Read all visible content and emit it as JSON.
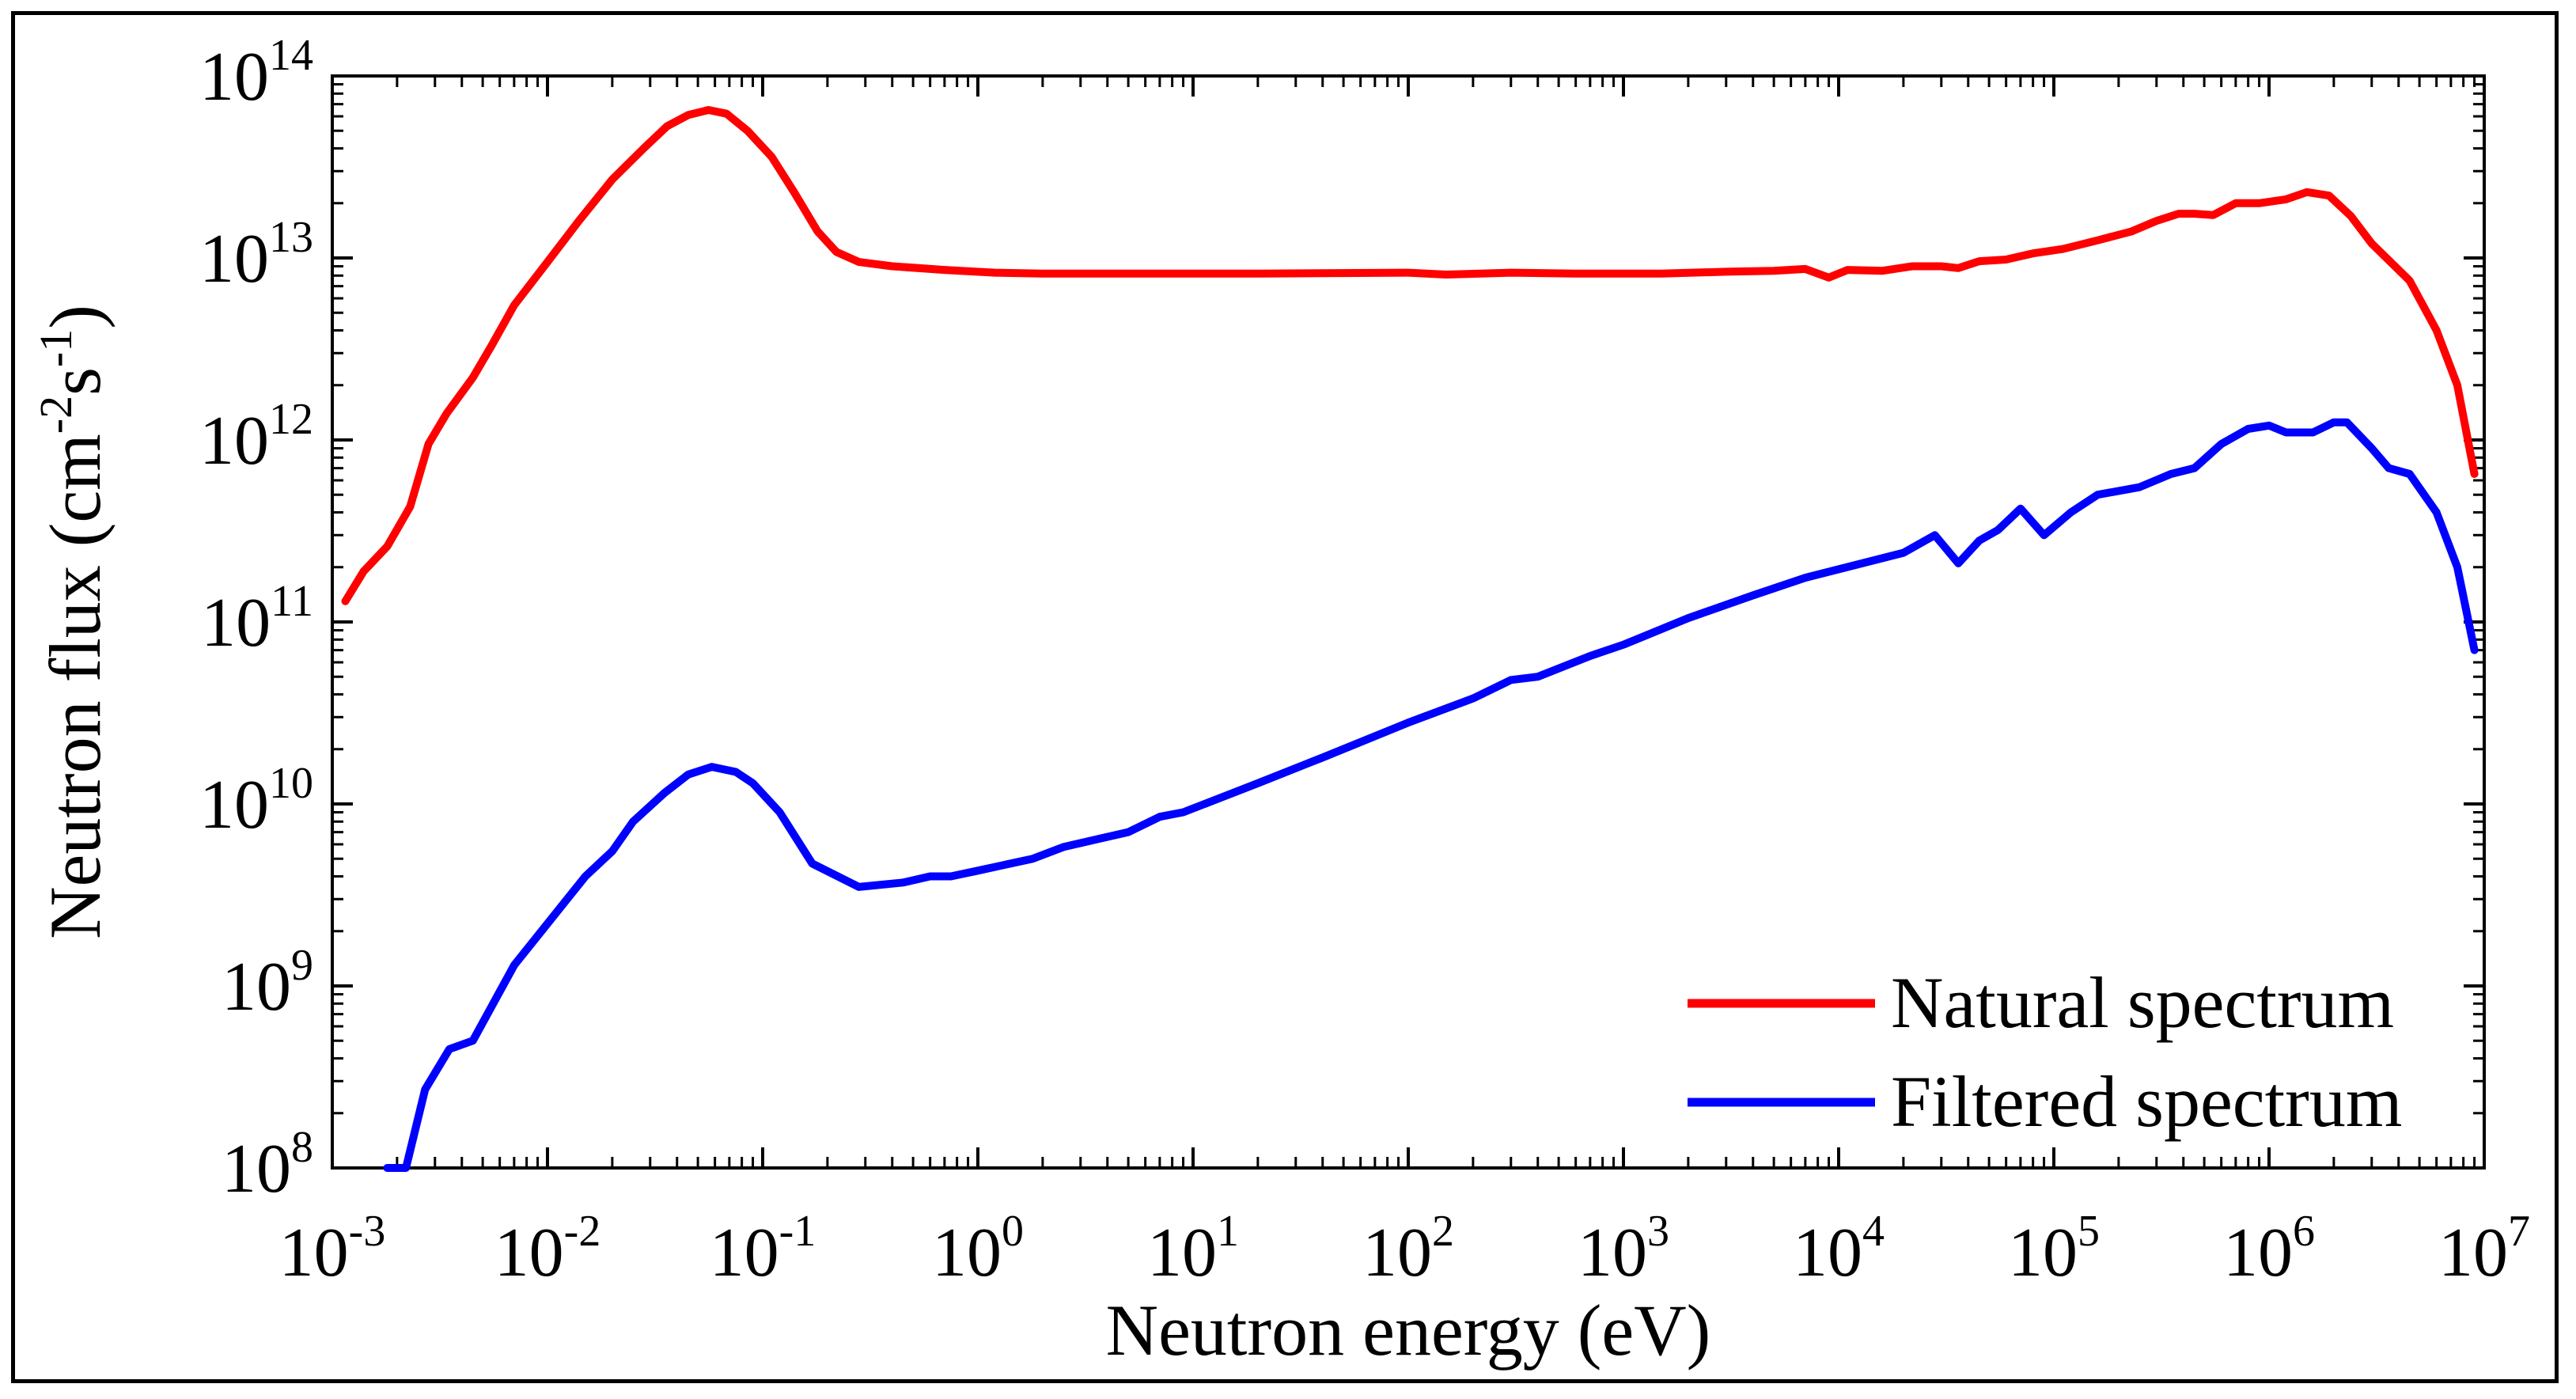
{
  "chart_data": {
    "type": "line",
    "title": "",
    "xlabel": "Neutron energy (eV)",
    "ylabel": {
      "base": "Neutron flux (cm",
      "sup1": "-2",
      "mid": "s",
      "sup2": "-1",
      "end": ")"
    },
    "xscale": "log",
    "yscale": "log",
    "xlim": [
      0.001,
      10000000
    ],
    "ylim": [
      100000000,
      100000000000000
    ],
    "x_ticks": [
      {
        "value": 0.001,
        "base": "10",
        "exp": "-3"
      },
      {
        "value": 0.01,
        "base": "10",
        "exp": "-2"
      },
      {
        "value": 0.1,
        "base": "10",
        "exp": "-1"
      },
      {
        "value": 1,
        "base": "10",
        "exp": "0"
      },
      {
        "value": 10,
        "base": "10",
        "exp": "1"
      },
      {
        "value": 100,
        "base": "10",
        "exp": "2"
      },
      {
        "value": 1000,
        "base": "10",
        "exp": "3"
      },
      {
        "value": 10000,
        "base": "10",
        "exp": "4"
      },
      {
        "value": 100000,
        "base": "10",
        "exp": "5"
      },
      {
        "value": 1000000,
        "base": "10",
        "exp": "6"
      },
      {
        "value": 10000000,
        "base": "10",
        "exp": "7"
      }
    ],
    "y_ticks": [
      {
        "value": 100000000,
        "base": "10",
        "exp": "8"
      },
      {
        "value": 1000000000,
        "base": "10",
        "exp": "9"
      },
      {
        "value": 10000000000,
        "base": "10",
        "exp": "10"
      },
      {
        "value": 100000000000,
        "base": "10",
        "exp": "11"
      },
      {
        "value": 1000000000000,
        "base": "10",
        "exp": "12"
      },
      {
        "value": 10000000000000,
        "base": "10",
        "exp": "13"
      },
      {
        "value": 100000000000000,
        "base": "10",
        "exp": "14"
      }
    ],
    "legend_position": "bottom-right",
    "series": [
      {
        "name": "Natural spectrum",
        "color": "#ff0000",
        "points": [
          [
            0.00115,
            130000000000.0
          ],
          [
            0.0014,
            190000000000.0
          ],
          [
            0.0018,
            260000000000.0
          ],
          [
            0.0023,
            430000000000.0
          ],
          [
            0.0028,
            950000000000.0
          ],
          [
            0.0034,
            1400000000000.0
          ],
          [
            0.0045,
            2200000000000.0
          ],
          [
            0.0055,
            3300000000000.0
          ],
          [
            0.007,
            5500000000000.0
          ],
          [
            0.01,
            9500000000000.0
          ],
          [
            0.014,
            16000000000000.0
          ],
          [
            0.02,
            27000000000000.0
          ],
          [
            0.028,
            40000000000000.0
          ],
          [
            0.036,
            53000000000000.0
          ],
          [
            0.045,
            61000000000000.0
          ],
          [
            0.056,
            65000000000000.0
          ],
          [
            0.068,
            62000000000000.0
          ],
          [
            0.085,
            50000000000000.0
          ],
          [
            0.11,
            36000000000000.0
          ],
          [
            0.14,
            23000000000000.0
          ],
          [
            0.18,
            14000000000000.0
          ],
          [
            0.22,
            10800000000000.0
          ],
          [
            0.28,
            9500000000000.0
          ],
          [
            0.4,
            9000000000000.0
          ],
          [
            0.7,
            8600000000000.0
          ],
          [
            1.2,
            8300000000000.0
          ],
          [
            2,
            8200000000000.0
          ],
          [
            5,
            8200000000000.0
          ],
          [
            20,
            8200000000000.0
          ],
          [
            100,
            8300000000000.0
          ],
          [
            150,
            8100000000000.0
          ],
          [
            300,
            8300000000000.0
          ],
          [
            600,
            8200000000000.0
          ],
          [
            1500,
            8200000000000.0
          ],
          [
            3000,
            8400000000000.0
          ],
          [
            5000,
            8500000000000.0
          ],
          [
            7000,
            8700000000000.0
          ],
          [
            9000,
            7800000000000.0
          ],
          [
            11000,
            8600000000000.0
          ],
          [
            16000,
            8500000000000.0
          ],
          [
            22000,
            9000000000000.0
          ],
          [
            30000,
            9000000000000.0
          ],
          [
            36000,
            8800000000000.0
          ],
          [
            45000,
            9600000000000.0
          ],
          [
            60000,
            9800000000000.0
          ],
          [
            80000,
            10600000000000.0
          ],
          [
            110000,
            11200000000000.0
          ],
          [
            160000,
            12500000000000.0
          ],
          [
            230000,
            14000000000000.0
          ],
          [
            300000,
            16000000000000.0
          ],
          [
            380000,
            17500000000000.0
          ],
          [
            450000,
            17500000000000.0
          ],
          [
            550000,
            17200000000000.0
          ],
          [
            700000,
            20000000000000.0
          ],
          [
            900000,
            20000000000000.0
          ],
          [
            1200000,
            21000000000000.0
          ],
          [
            1500000,
            23000000000000.0
          ],
          [
            1900000,
            22000000000000.0
          ],
          [
            2400000,
            17000000000000.0
          ],
          [
            3000000,
            12000000000000.0
          ],
          [
            4500000,
            7500000000000.0
          ],
          [
            6000000,
            4000000000000.0
          ],
          [
            7500000,
            2000000000000.0
          ],
          [
            9000000,
            650000000000.0
          ]
        ]
      },
      {
        "name": "Filtered spectrum",
        "color": "#0000ff",
        "points": [
          [
            0.0018,
            100000000.0
          ],
          [
            0.0022,
            100000000.0
          ],
          [
            0.0027,
            270000000.0
          ],
          [
            0.0035,
            450000000.0
          ],
          [
            0.0045,
            500000000.0
          ],
          [
            0.007,
            1300000000.0
          ],
          [
            0.01,
            2200000000.0
          ],
          [
            0.015,
            4000000000.0
          ],
          [
            0.02,
            5500000000.0
          ],
          [
            0.025,
            8000000000.0
          ],
          [
            0.035,
            11500000000.0
          ],
          [
            0.045,
            14500000000.0
          ],
          [
            0.058,
            16000000000.0
          ],
          [
            0.075,
            15000000000.0
          ],
          [
            0.09,
            13000000000.0
          ],
          [
            0.12,
            9000000000.0
          ],
          [
            0.17,
            4700000000.0
          ],
          [
            0.28,
            3500000000.0
          ],
          [
            0.45,
            3700000000.0
          ],
          [
            0.6,
            4000000000.0
          ],
          [
            0.75,
            4000000000.0
          ],
          [
            1.0,
            4300000000.0
          ],
          [
            1.8,
            5000000000.0
          ],
          [
            2.5,
            5800000000.0
          ],
          [
            5,
            7000000000.0
          ],
          [
            7,
            8500000000.0
          ],
          [
            9,
            9000000000.0
          ],
          [
            20,
            13000000000.0
          ],
          [
            40,
            18000000000.0
          ],
          [
            100,
            28000000000.0
          ],
          [
            200,
            38000000000.0
          ],
          [
            300,
            48000000000.0
          ],
          [
            400,
            50000000000.0
          ],
          [
            700,
            65000000000.0
          ],
          [
            1000,
            75000000000.0
          ],
          [
            2000,
            105000000000.0
          ],
          [
            4000,
            140000000000.0
          ],
          [
            7000,
            175000000000.0
          ],
          [
            20000,
            240000000000.0
          ],
          [
            28000,
            300000000000.0
          ],
          [
            36000,
            210000000000.0
          ],
          [
            45000,
            280000000000.0
          ],
          [
            55000,
            320000000000.0
          ],
          [
            70000,
            420000000000.0
          ],
          [
            90000,
            300000000000.0
          ],
          [
            120000,
            400000000000.0
          ],
          [
            160000,
            500000000000.0
          ],
          [
            250000,
            550000000000.0
          ],
          [
            350000,
            650000000000.0
          ],
          [
            450000,
            700000000000.0
          ],
          [
            600000,
            950000000000.0
          ],
          [
            800000,
            1150000000000.0
          ],
          [
            1000000,
            1200000000000.0
          ],
          [
            1200000,
            1100000000000.0
          ],
          [
            1600000,
            1100000000000.0
          ],
          [
            2000000,
            1250000000000.0
          ],
          [
            2300000,
            1250000000000.0
          ],
          [
            3000000,
            900000000000.0
          ],
          [
            3600000,
            700000000000.0
          ],
          [
            4500000,
            650000000000.0
          ],
          [
            6000000,
            400000000000.0
          ],
          [
            7500000,
            200000000000.0
          ],
          [
            9000000,
            70000000000.0
          ]
        ]
      }
    ]
  }
}
